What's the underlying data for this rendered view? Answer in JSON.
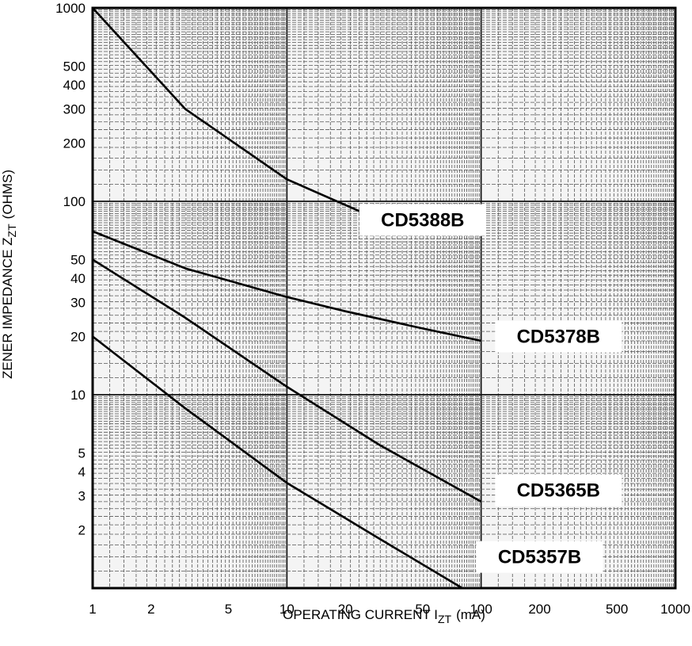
{
  "chart_data": {
    "type": "line",
    "x_scale": "log",
    "y_scale": "log",
    "xlim": [
      1,
      1000
    ],
    "ylim": [
      1,
      1000
    ],
    "grid": true,
    "xlabel_main": "OPERATING CURRENT I",
    "xlabel_sub": "ZT",
    "xlabel_unit": "(mA)",
    "ylabel_main": "ZENER IMPEDANCE Z",
    "ylabel_sub": "ZT",
    "ylabel_unit": "(OHMS)",
    "x_ticks": [
      {
        "value": 1,
        "label": "1"
      },
      {
        "value": 2,
        "label": "2"
      },
      {
        "value": 5,
        "label": "5"
      },
      {
        "value": 10,
        "label": "10"
      },
      {
        "value": 20,
        "label": "20"
      },
      {
        "value": 50,
        "label": "50"
      },
      {
        "value": 100,
        "label": "100"
      },
      {
        "value": 200,
        "label": "200"
      },
      {
        "value": 500,
        "label": "500"
      },
      {
        "value": 1000,
        "label": "1000"
      }
    ],
    "y_ticks": [
      {
        "value": 2,
        "label": "2"
      },
      {
        "value": 3,
        "label": "3"
      },
      {
        "value": 4,
        "label": "4"
      },
      {
        "value": 5,
        "label": "5"
      },
      {
        "value": 10,
        "label": "10"
      },
      {
        "value": 20,
        "label": "20"
      },
      {
        "value": 30,
        "label": "30"
      },
      {
        "value": 40,
        "label": "40"
      },
      {
        "value": 50,
        "label": "50"
      },
      {
        "value": 100,
        "label": "100"
      },
      {
        "value": 200,
        "label": "200"
      },
      {
        "value": 300,
        "label": "300"
      },
      {
        "value": 400,
        "label": "400"
      },
      {
        "value": 500,
        "label": "500"
      },
      {
        "value": 1000,
        "label": "1000"
      }
    ],
    "series": [
      {
        "name": "CD5388B",
        "label_x": 50,
        "label_y": 80,
        "x": [
          1,
          3,
          10,
          30
        ],
        "y": [
          1000,
          300,
          130,
          80
        ]
      },
      {
        "name": "CD5378B",
        "label_x": 250,
        "label_y": 20,
        "x": [
          1,
          3,
          10,
          20,
          50,
          100
        ],
        "y": [
          70,
          45,
          32,
          27,
          22,
          19
        ]
      },
      {
        "name": "CD5365B",
        "label_x": 250,
        "label_y": 3.2,
        "x": [
          1,
          3,
          10,
          30,
          100
        ],
        "y": [
          50,
          25,
          11,
          5.5,
          2.8
        ]
      },
      {
        "name": "CD5357B",
        "label_x": 200,
        "label_y": 1.45,
        "x": [
          1,
          3,
          10,
          30,
          80
        ],
        "y": [
          20,
          8.5,
          3.5,
          1.8,
          1
        ]
      }
    ]
  }
}
